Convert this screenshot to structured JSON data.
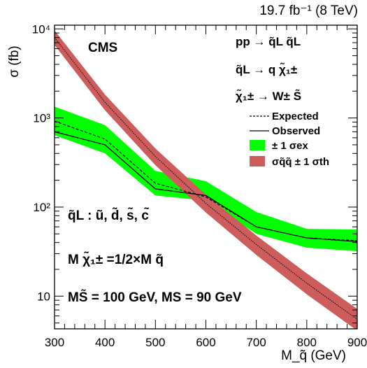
{
  "chart_data": {
    "type": "line",
    "header": "19.7 fb⁻¹ (8 TeV)",
    "experiment": "CMS",
    "xlabel": "M_q̃ (GeV)",
    "ylabel": "σ (fb)",
    "xlim": [
      300,
      900
    ],
    "ylim": [
      4.3,
      11000
    ],
    "yscale": "log",
    "xticks": [
      300,
      400,
      500,
      600,
      700,
      800,
      900
    ],
    "yticks": [
      10,
      100,
      1000,
      10000
    ],
    "ytick_labels": [
      "10",
      "10²",
      "10³",
      "10⁴"
    ],
    "process_lines": [
      "pp → q̃L q̃L",
      "q̃L → q χ̃₁±",
      "χ̃₁± → W± S̃"
    ],
    "annotations": [
      "q̃L : ũ, d̃, s̃, c̃",
      "M χ̃₁± =1/2×M q̃",
      "MS̃ = 100 GeV, MS = 90 GeV"
    ],
    "legend_position": "top-right",
    "legend": [
      "Expected",
      "Observed",
      "± 1 σex",
      "σq̃q̃ ± 1 σth"
    ],
    "series": [
      {
        "name": "Observed",
        "x": [
          300,
          400,
          500,
          600,
          700,
          800,
          900
        ],
        "y": [
          700,
          500,
          160,
          135,
          60,
          45,
          41
        ]
      },
      {
        "name": "Expected",
        "x": [
          300,
          400,
          500,
          600,
          700,
          800,
          900
        ],
        "y": [
          920,
          580,
          185,
          130,
          60,
          45,
          42
        ]
      },
      {
        "name": "± 1 σex",
        "x": [
          300,
          400,
          500,
          600,
          700,
          800,
          900
        ],
        "low": [
          640,
          400,
          135,
          118,
          50,
          35,
          32
        ],
        "high": [
          1340,
          830,
          255,
          195,
          88,
          57,
          56
        ]
      },
      {
        "name": "σq̃q̃ ± 1 σth",
        "x": [
          300,
          400,
          500,
          600,
          700,
          800,
          900
        ],
        "y": [
          8000,
          1500,
          370,
          110,
          38,
          14,
          5.5
        ],
        "low": [
          6600,
          1220,
          295,
          87,
          29,
          10.5,
          4.1
        ],
        "high": [
          9600,
          1830,
          455,
          138,
          48,
          18,
          7.2
        ]
      }
    ]
  }
}
